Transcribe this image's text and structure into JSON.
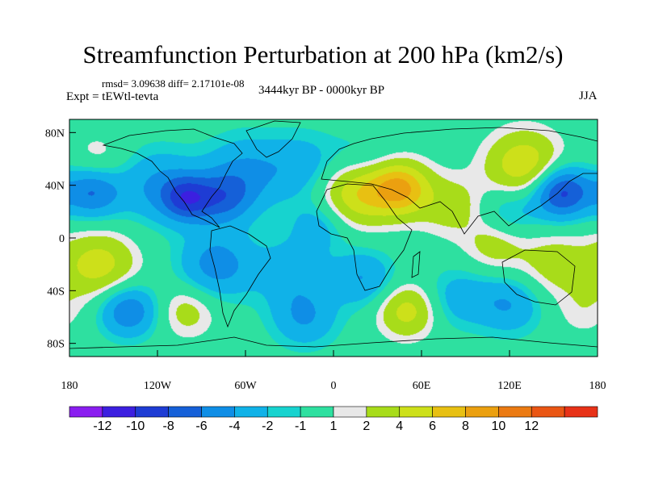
{
  "chart_data": {
    "type": "heatmap",
    "title": "Streamfunction Perturbation at 200 hPa (km2/s)",
    "stats_text": "rmsd= 3.09638 diff= 2.17101e-08",
    "experiment_label": "Expt = tEWtl-tevta",
    "period_label": "3444kyr BP - 0000kyr BP",
    "season_label": "JJA",
    "x_range": [
      -180,
      180
    ],
    "y_range": [
      -90,
      90
    ],
    "x_ticks": [
      {
        "value": -180,
        "label": "180"
      },
      {
        "value": -120,
        "label": "120W"
      },
      {
        "value": -60,
        "label": "60W"
      },
      {
        "value": 0,
        "label": "0"
      },
      {
        "value": 60,
        "label": "60E"
      },
      {
        "value": 120,
        "label": "120E"
      },
      {
        "value": 180,
        "label": "180"
      }
    ],
    "y_ticks": [
      {
        "value": 80,
        "label": "80N"
      },
      {
        "value": 40,
        "label": "40N"
      },
      {
        "value": 0,
        "label": "0"
      },
      {
        "value": -40,
        "label": "40S"
      },
      {
        "value": -80,
        "label": "80S"
      }
    ],
    "colorbar": {
      "levels": [
        -12,
        -10,
        -8,
        -6,
        -4,
        -2,
        -1,
        1,
        2,
        4,
        6,
        8,
        10,
        12
      ],
      "labels": [
        "-12",
        "-10",
        "-8",
        "-6",
        "-4",
        "-2",
        "-1",
        "1",
        "2",
        "4",
        "6",
        "8",
        "10",
        "12"
      ],
      "colors": [
        "#8a1ef0",
        "#3c1fe0",
        "#1e3cd4",
        "#1560d8",
        "#0f8ee6",
        "#10b2e8",
        "#17d3cf",
        "#2ee0a0",
        "#e8e8e8",
        "#a8dc1a",
        "#cde01a",
        "#e8c012",
        "#eba010",
        "#eb7a12",
        "#ea5614",
        "#e83218"
      ]
    },
    "field_anomalies": [
      {
        "lon": -160,
        "lat": 60,
        "value": 2,
        "spread": 14
      },
      {
        "lon": -165,
        "lat": 35,
        "value": -6,
        "spread": 14
      },
      {
        "lon": -120,
        "lat": 40,
        "value": -4,
        "spread": 20
      },
      {
        "lon": -100,
        "lat": 30,
        "value": -7,
        "spread": 12
      },
      {
        "lon": -75,
        "lat": 30,
        "value": -5,
        "spread": 14
      },
      {
        "lon": -60,
        "lat": 50,
        "value": -4,
        "spread": 20
      },
      {
        "lon": -20,
        "lat": 55,
        "value": -3,
        "spread": 18
      },
      {
        "lon": 15,
        "lat": 35,
        "value": 6,
        "spread": 18
      },
      {
        "lon": 45,
        "lat": 38,
        "value": 8,
        "spread": 14
      },
      {
        "lon": 80,
        "lat": 25,
        "value": 3,
        "spread": 16
      },
      {
        "lon": 20,
        "lat": 60,
        "value": -2,
        "spread": 16
      },
      {
        "lon": -10,
        "lat": 10,
        "value": -3,
        "spread": 14
      },
      {
        "lon": 130,
        "lat": 55,
        "value": 6,
        "spread": 18
      },
      {
        "lon": 155,
        "lat": 35,
        "value": -9,
        "spread": 14
      },
      {
        "lon": 120,
        "lat": 20,
        "value": -3,
        "spread": 15
      },
      {
        "lon": 110,
        "lat": -5,
        "value": 3,
        "spread": 15
      },
      {
        "lon": 150,
        "lat": -20,
        "value": 3,
        "spread": 18
      },
      {
        "lon": -160,
        "lat": -20,
        "value": 5,
        "spread": 18
      },
      {
        "lon": -140,
        "lat": -55,
        "value": -6,
        "spread": 14
      },
      {
        "lon": -100,
        "lat": -55,
        "value": 3,
        "spread": 14
      },
      {
        "lon": -80,
        "lat": -20,
        "value": -5,
        "spread": 18
      },
      {
        "lon": -30,
        "lat": -25,
        "value": -3,
        "spread": 18
      },
      {
        "lon": -20,
        "lat": -60,
        "value": -4,
        "spread": 16
      },
      {
        "lon": 20,
        "lat": -30,
        "value": -4,
        "spread": 15
      },
      {
        "lon": 50,
        "lat": -55,
        "value": 5,
        "spread": 14
      },
      {
        "lon": 85,
        "lat": -45,
        "value": -3,
        "spread": 16
      },
      {
        "lon": 120,
        "lat": -50,
        "value": -4,
        "spread": 16
      },
      {
        "lon": 170,
        "lat": -55,
        "value": 1.5,
        "spread": 14
      }
    ]
  }
}
